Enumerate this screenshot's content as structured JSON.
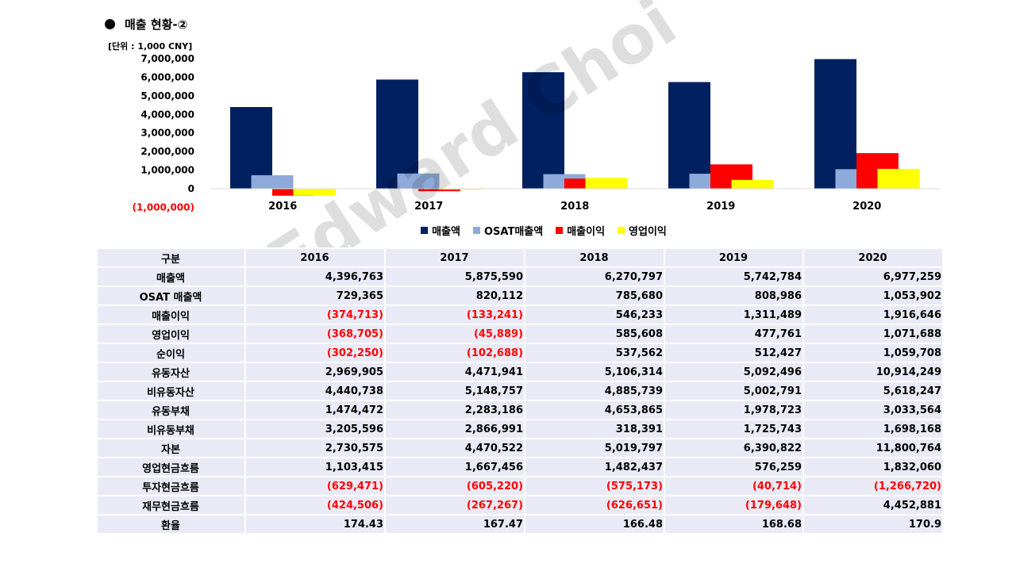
{
  "header": {
    "title": "매출 현황-②",
    "unit": "[단위 : 1,000 CNY]"
  },
  "colors": {
    "매출액": "#002060",
    "OSAT매출액": "#8eaadb",
    "매출이익": "#ff0000",
    "영업이익": "#ffff00",
    "negative_text": "#ff0000",
    "table_bg": "#e9eaf5"
  },
  "chart_data": {
    "type": "bar",
    "categories": [
      "2016",
      "2017",
      "2018",
      "2019",
      "2020"
    ],
    "series": [
      {
        "name": "매출액",
        "values": [
          4396763,
          5875590,
          6270797,
          5742784,
          6977259
        ]
      },
      {
        "name": "OSAT매출액",
        "values": [
          729365,
          820112,
          785680,
          808986,
          1053902
        ]
      },
      {
        "name": "매출이익",
        "values": [
          -374713,
          -133241,
          546233,
          1311489,
          1916646
        ]
      },
      {
        "name": "영업이익",
        "values": [
          -368705,
          -45889,
          585608,
          477761,
          1071688
        ]
      }
    ],
    "ylim": [
      -1000000,
      7000000
    ],
    "yticks": [
      "7,000,000",
      "6,000,000",
      "5,000,000",
      "4,000,000",
      "3,000,000",
      "2,000,000",
      "1,000,000",
      "0",
      "(1,000,000)"
    ],
    "ytick_values": [
      7000000,
      6000000,
      5000000,
      4000000,
      3000000,
      2000000,
      1000000,
      0,
      -1000000
    ],
    "legend_position": "bottom",
    "grid": false
  },
  "watermark": "Edward Choi",
  "table": {
    "header": [
      "구분",
      "2016",
      "2017",
      "2018",
      "2019",
      "2020"
    ],
    "rows": [
      {
        "label": "매출액",
        "values": [
          "4,396,763",
          "5,875,590",
          "6,270,797",
          "5,742,784",
          "6,977,259"
        ]
      },
      {
        "label": "OSAT 매출액",
        "values": [
          "729,365",
          "820,112",
          "785,680",
          "808,986",
          "1,053,902"
        ]
      },
      {
        "label": "매출이익",
        "values": [
          "(374,713)",
          "(133,241)",
          "546,233",
          "1,311,489",
          "1,916,646"
        ]
      },
      {
        "label": "영업이익",
        "values": [
          "(368,705)",
          "(45,889)",
          "585,608",
          "477,761",
          "1,071,688"
        ]
      },
      {
        "label": "순이익",
        "values": [
          "(302,250)",
          "(102,688)",
          "537,562",
          "512,427",
          "1,059,708"
        ]
      },
      {
        "label": "유동자산",
        "values": [
          "2,969,905",
          "4,471,941",
          "5,106,314",
          "5,092,496",
          "10,914,249"
        ]
      },
      {
        "label": "비유동자산",
        "values": [
          "4,440,738",
          "5,148,757",
          "4,885,739",
          "5,002,791",
          "5,618,247"
        ]
      },
      {
        "label": "유동부채",
        "values": [
          "1,474,472",
          "2,283,186",
          "4,653,865",
          "1,978,723",
          "3,033,564"
        ]
      },
      {
        "label": "비유동부채",
        "values": [
          "3,205,596",
          "2,866,991",
          "318,391",
          "1,725,743",
          "1,698,168"
        ]
      },
      {
        "label": "자본",
        "values": [
          "2,730,575",
          "4,470,522",
          "5,019,797",
          "6,390,822",
          "11,800,764"
        ]
      },
      {
        "label": "영업현금흐름",
        "values": [
          "1,103,415",
          "1,667,456",
          "1,482,437",
          "576,259",
          "1,832,060"
        ]
      },
      {
        "label": "투자현금흐름",
        "values": [
          "(629,471)",
          "(605,220)",
          "(575,173)",
          "(40,714)",
          "(1,266,720)"
        ]
      },
      {
        "label": "재무현금흐름",
        "values": [
          "(424,506)",
          "(267,267)",
          "(626,651)",
          "(179,648)",
          "4,452,881"
        ]
      },
      {
        "label": "환율",
        "values": [
          "174.43",
          "167.47",
          "166.48",
          "168.68",
          "170.9"
        ]
      }
    ]
  }
}
